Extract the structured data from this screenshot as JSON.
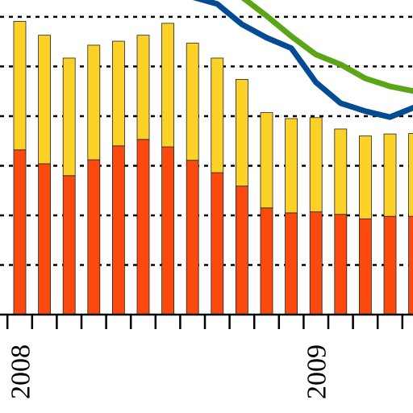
{
  "chart_data": {
    "type": "bar",
    "stacked": true,
    "grid": true,
    "categories": [
      "2008",
      null,
      null,
      null,
      null,
      null,
      null,
      null,
      null,
      null,
      null,
      null,
      "2009",
      null,
      null,
      null,
      null
    ],
    "ylim": [
      0,
      6.34
    ],
    "yticks": [
      1,
      2,
      3,
      4,
      5,
      6
    ],
    "series": [
      {
        "type": "bar",
        "color": "#fc4a0f",
        "values": [
          3.32,
          3.04,
          2.8,
          3.12,
          3.4,
          3.53,
          3.38,
          3.11,
          2.86,
          2.59,
          2.15,
          2.05,
          2.07,
          2.02,
          1.93,
          1.98,
          1.98
        ]
      },
      {
        "type": "bar",
        "color": "#fdd228",
        "values": [
          2.59,
          2.59,
          2.37,
          2.31,
          2.11,
          2.1,
          2.49,
          2.36,
          2.31,
          2.15,
          1.92,
          1.9,
          1.9,
          1.72,
          1.67,
          1.66,
          1.67
        ]
      },
      {
        "type": "line",
        "color": "#5ba617",
        "values": [
          null,
          null,
          null,
          null,
          null,
          null,
          null,
          null,
          null,
          6.4,
          6.02,
          5.61,
          5.24,
          5.04,
          4.76,
          4.6,
          4.5
        ]
      },
      {
        "type": "line",
        "color": "#034c94",
        "values": [
          null,
          null,
          null,
          null,
          null,
          null,
          null,
          6.4,
          6.26,
          5.85,
          5.58,
          5.37,
          4.68,
          4.26,
          4.1,
          3.98,
          4.18
        ]
      }
    ]
  }
}
